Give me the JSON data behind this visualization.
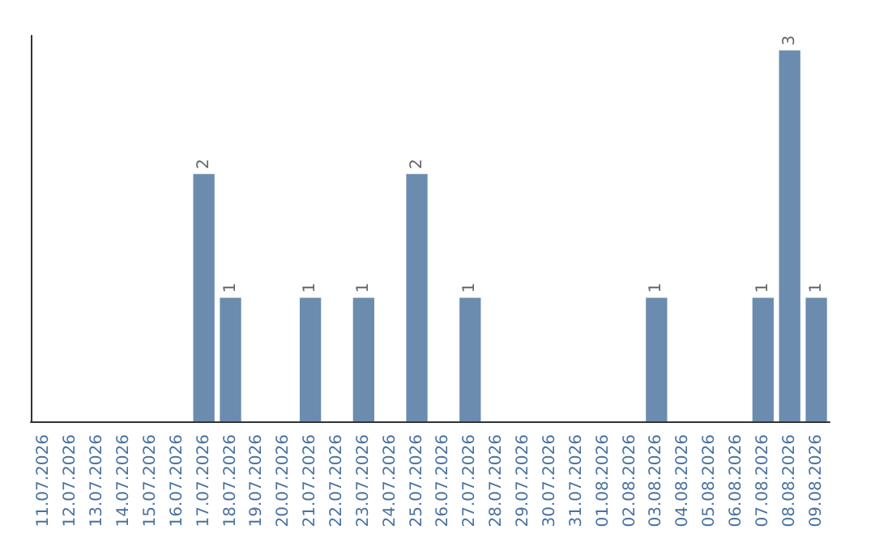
{
  "chart_data": {
    "type": "bar",
    "categories": [
      "11.07.2026",
      "12.07.2026",
      "13.07.2026",
      "14.07.2026",
      "15.07.2026",
      "16.07.2026",
      "17.07.2026",
      "18.07.2026",
      "19.07.2026",
      "20.07.2026",
      "21.07.2026",
      "22.07.2026",
      "23.07.2026",
      "24.07.2026",
      "25.07.2026",
      "26.07.2026",
      "27.07.2026",
      "28.07.2026",
      "29.07.2026",
      "30.07.2026",
      "31.07.2026",
      "01.08.2026",
      "02.08.2026",
      "03.08.2026",
      "04.08.2026",
      "05.08.2026",
      "06.08.2026",
      "07.08.2026",
      "08.08.2026",
      "09.08.2026"
    ],
    "values": [
      0,
      0,
      0,
      0,
      0,
      0,
      2,
      1,
      0,
      0,
      1,
      0,
      1,
      0,
      2,
      0,
      1,
      0,
      0,
      0,
      0,
      0,
      0,
      1,
      0,
      0,
      0,
      1,
      3,
      1
    ],
    "value_labels": [
      null,
      null,
      null,
      null,
      null,
      null,
      "2",
      "1",
      null,
      null,
      "1",
      null,
      "1",
      null,
      "2",
      null,
      "1",
      null,
      null,
      null,
      null,
      null,
      null,
      "1",
      null,
      null,
      null,
      "1",
      "3",
      "1"
    ],
    "color": "#6b8cae",
    "tick_labels": "x"
  }
}
